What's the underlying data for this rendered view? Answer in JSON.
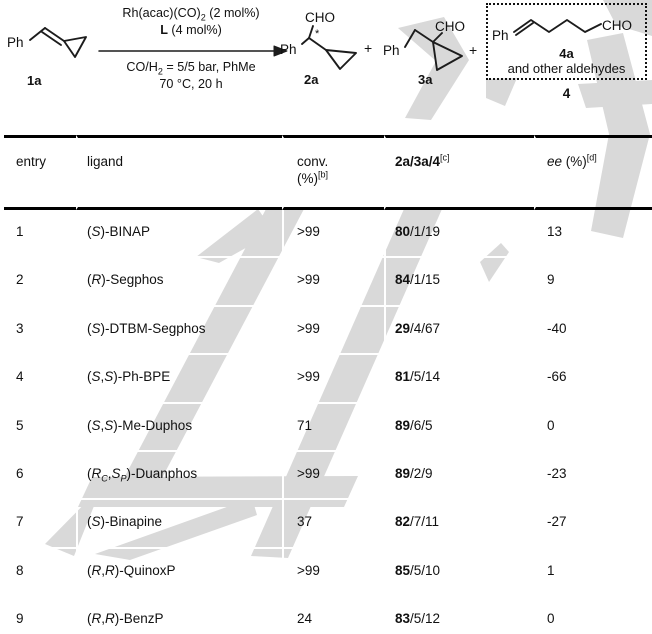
{
  "scheme": {
    "plus_sign": "+",
    "conditions": {
      "above1": "Rh(acac)(CO)~2~ (2 mol%)",
      "above2": "#L# (4 mol%)",
      "below1": "CO/H~2~ = 5/5 bar, PhMe",
      "below2": "70 °C, 20 h"
    },
    "molecules": {
      "m1a": {
        "ph": "Ph",
        "label": "1a"
      },
      "m2a": {
        "cho": "CHO",
        "stereo": "*",
        "ph": "Ph",
        "label": "2a"
      },
      "m3a": {
        "ph": "Ph",
        "cho": "CHO",
        "label": "3a"
      },
      "m4a": {
        "ph": "Ph",
        "cho": "CHO",
        "label": "4a",
        "note": "and other aldehydes",
        "group_label": "4"
      }
    }
  },
  "table": {
    "headers": [
      "entry",
      "ligand",
      "conv.|(%)^[b]^",
      "#2a/3a/4#^[c]^",
      "*ee* (%)^[d]^"
    ],
    "rows": [
      {
        "entry": "1",
        "ligand": "(*S*)-BINAP",
        "conv": ">99",
        "ratio": "80/1/19",
        "ee": "13"
      },
      {
        "entry": "2",
        "ligand": "(*R*)-Segphos",
        "conv": ">99",
        "ratio": "84/1/15",
        "ee": "9"
      },
      {
        "entry": "3",
        "ligand": "(*S*)-DTBM-Segphos",
        "conv": ">99",
        "ratio": "29/4/67",
        "ee": "-40"
      },
      {
        "entry": "4",
        "ligand": "(*S*,*S*)-Ph-BPE",
        "conv": ">99",
        "ratio": "81/5/14",
        "ee": "-66"
      },
      {
        "entry": "5",
        "ligand": "(*S*,*S*)-Me-Duphos",
        "conv": "71",
        "ratio": "89/6/5",
        "ee": "0"
      },
      {
        "entry": "6",
        "ligand": "(*R*~*C*~,*S*~*P*~)-Duanphos",
        "conv": ">99",
        "ratio": "89/2/9",
        "ee": "-23"
      },
      {
        "entry": "7",
        "ligand": "(*S*)-Binapine",
        "conv": "37",
        "ratio": "82/7/11",
        "ee": "-27"
      },
      {
        "entry": "8",
        "ligand": "(*R*,*R*)-QuinoxP",
        "conv": ">99",
        "ratio": "85/5/10",
        "ee": "1"
      },
      {
        "entry": "9",
        "ligand": "(*R*,*R*)-BenzP",
        "conv": "24",
        "ratio": "83/5/12",
        "ee": "0"
      }
    ]
  },
  "watermark_color": "#d9d9d9"
}
